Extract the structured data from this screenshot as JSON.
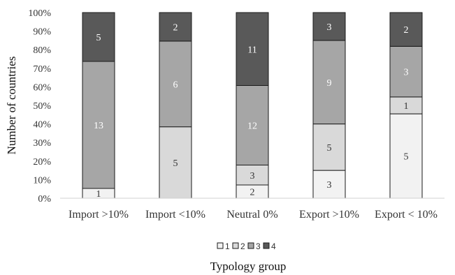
{
  "chart_data": {
    "type": "bar",
    "stacked": true,
    "percent_stacked": true,
    "title": "",
    "xlabel": "Typology group",
    "ylabel": "Number of countries",
    "ylim": [
      0,
      100
    ],
    "y_ticks": [
      "0%",
      "10%",
      "20%",
      "30%",
      "40%",
      "50%",
      "60%",
      "70%",
      "80%",
      "90%",
      "100%"
    ],
    "grid": false,
    "legend_position": "bottom",
    "categories": [
      "Import >10%",
      "Import <10%",
      "Neutral 0%",
      "Export >10%",
      "Export < 10%"
    ],
    "series": [
      {
        "name": "1",
        "color": "#f2f2f2",
        "label_color": "#333333",
        "values": [
          1,
          0,
          2,
          3,
          5
        ]
      },
      {
        "name": "2",
        "color": "#d9d9d9",
        "label_color": "#333333",
        "values": [
          0,
          5,
          3,
          5,
          1
        ]
      },
      {
        "name": "3",
        "color": "#a6a6a6",
        "label_color": "#ffffff",
        "values": [
          13,
          6,
          12,
          9,
          3
        ]
      },
      {
        "name": "4",
        "color": "#595959",
        "label_color": "#ffffff",
        "values": [
          5,
          2,
          11,
          3,
          2
        ]
      }
    ]
  }
}
